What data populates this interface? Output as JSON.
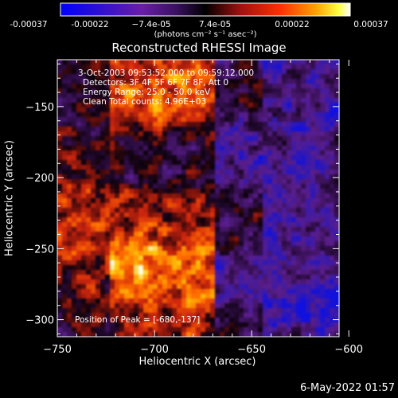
{
  "colorbar": {
    "ticks": [
      "-0.00037",
      "-0.00022",
      "−7.4e-05",
      "7.4e-05",
      "0.00022",
      "0.00037"
    ],
    "units": "(photons cm⁻² s⁻¹ asec⁻²)"
  },
  "chart_data": {
    "type": "heatmap",
    "title": "Reconstructed RHESSI Image",
    "xlabel": "Heliocentric X (arcsec)",
    "ylabel": "Heliocentric Y (arcsec)",
    "xlim": [
      -750,
      -605
    ],
    "ylim": [
      -312,
      -117
    ],
    "x_ticks": [
      -750,
      -700,
      -650,
      -600
    ],
    "x_tick_labels": [
      "−750",
      "−700",
      "−650",
      "−600"
    ],
    "y_ticks": [
      -150,
      -200,
      -250,
      -300
    ],
    "y_tick_labels": [
      "−150",
      "−200",
      "−250",
      "−300"
    ],
    "colorbar_range": [
      -0.00037,
      0.00037
    ],
    "colormap": [
      "#1010e0",
      "#2020a0",
      "#5a1e8c",
      "#2a0c3c",
      "#050005",
      "#8c1a10",
      "#e03010",
      "#ff8c00",
      "#ffd000",
      "#ffffff"
    ],
    "info_lines": [
      "3-Oct-2003 09:53:52.000 to 09:59:12.000",
      "Detectors: 3F 4F 5F 6F 7F 8F, Att 0",
      "Energy Range: 25.0 - 50.0 keV",
      "Clean     Total counts: 4.96E+03"
    ],
    "peak_label": "Position of Peak = [-680,-137]",
    "peak_position": [
      -680,
      -137
    ]
  },
  "footer": {
    "timestamp": "6-May-2022 01:57"
  }
}
